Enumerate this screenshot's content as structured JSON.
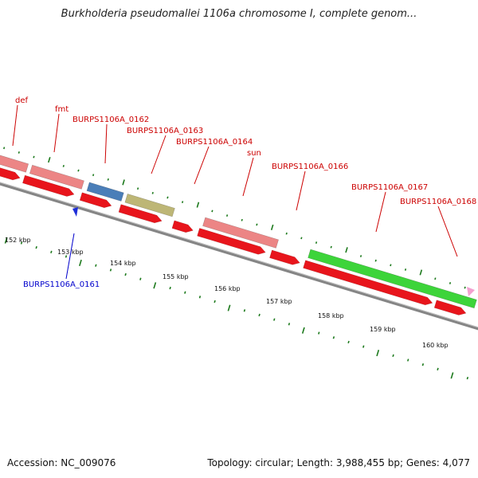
{
  "title": "Burkholderia pseudomallei 1106a chromosome I, complete genom...",
  "footer": {
    "accession": "Accession: NC_009076",
    "summary": "Topology: circular; Length: 3,988,455 bp; Genes: 4,077"
  },
  "colors": {
    "cds_forward": "#e8151c",
    "gene_pink": "#ec8585",
    "gene_blue": "#4a7eb8",
    "gene_olive": "#bdb676",
    "gene_green": "#3dd43a",
    "ticks": "#1d7a1d",
    "backbone": "#858585",
    "label_red": "#cc0000",
    "label_blue": "#0000cc",
    "reverse_cds": "#1f2fd8",
    "pink_marker": "#f4a0d0"
  },
  "ruler_labels": [
    "152 kbp",
    "153 kbp",
    "154 kbp",
    "155 kbp",
    "156 kbp",
    "157 kbp",
    "158 kbp",
    "159 kbp",
    "160 kbp"
  ],
  "gene_labels": [
    {
      "id": "def",
      "text": "def",
      "color": "red"
    },
    {
      "id": "fmt",
      "text": "fmt",
      "color": "red"
    },
    {
      "id": "burps1106a-0162",
      "text": "BURPS1106A_0162",
      "color": "red"
    },
    {
      "id": "burps1106a-0163",
      "text": "BURPS1106A_0163",
      "color": "red"
    },
    {
      "id": "burps1106a-0164",
      "text": "BURPS1106A_0164",
      "color": "red"
    },
    {
      "id": "sun",
      "text": "sun",
      "color": "red"
    },
    {
      "id": "burps1106a-0166",
      "text": "BURPS1106A_0166",
      "color": "red"
    },
    {
      "id": "burps1106a-0167",
      "text": "BURPS1106A_0167",
      "color": "red"
    },
    {
      "id": "burps1106a-0168",
      "text": "BURPS1106A_0168",
      "color": "red"
    },
    {
      "id": "burps1106a-0161",
      "text": "BURPS1106A_0161",
      "color": "blue"
    }
  ]
}
